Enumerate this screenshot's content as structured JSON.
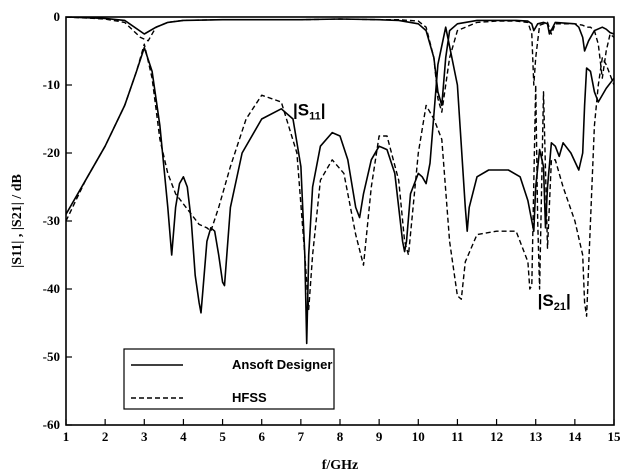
{
  "chart_data": {
    "type": "line",
    "xlabel": "f/GHz",
    "ylabel": "|S11| , |S21|  / dB",
    "xlim": [
      1,
      15
    ],
    "ylim": [
      -60,
      0
    ],
    "xticks": [
      1,
      2,
      3,
      4,
      5,
      6,
      7,
      8,
      9,
      10,
      11,
      12,
      13,
      14,
      15
    ],
    "yticks": [
      0,
      -10,
      -20,
      -30,
      -40,
      -50,
      -60
    ],
    "grid": false,
    "legend_position": "bottom-left",
    "annotations": [
      {
        "text": "|S11|",
        "main": "|S",
        "sub": "11",
        "tail": "|",
        "x": 6.8,
        "y": -14.5
      },
      {
        "text": "|S21|",
        "main": "|S",
        "sub": "21",
        "tail": "|",
        "x": 13.05,
        "y": -42.5
      }
    ],
    "series": [
      {
        "name": "Ansoft Designer",
        "style": "solid",
        "curves": [
          {
            "x": [
              1,
              1.5,
              2,
              2.5,
              2.8,
              3,
              3.2,
              3.4,
              3.6,
              3.7,
              3.8,
              3.9,
              4,
              4.1,
              4.2,
              4.3,
              4.4,
              4.45,
              4.5,
              4.6,
              4.7,
              4.8,
              4.9,
              5,
              5.05,
              5.2,
              5.5,
              6,
              6.5,
              6.8,
              7,
              7.1,
              7.15,
              7.2,
              7.3,
              7.5,
              7.8,
              8,
              8.2,
              8.4,
              8.5,
              8.6,
              8.8,
              9,
              9.2,
              9.4,
              9.6,
              9.65,
              9.7,
              9.8,
              10,
              10.1,
              10.2,
              10.3,
              10.5,
              10.7,
              11,
              11.2,
              11.25,
              11.3,
              11.5,
              11.8,
              12,
              12.3,
              12.6,
              12.8,
              12.9,
              12.95,
              13,
              13.1,
              13.2,
              13.25,
              13.3,
              13.4,
              13.5,
              13.6,
              13.7,
              13.9,
              14.1,
              14.2,
              14.25,
              14.3,
              14.4,
              14.5,
              14.6,
              14.8,
              15
            ],
            "y": [
              -29,
              -24,
              -19,
              -13,
              -8,
              -4.5,
              -8,
              -16,
              -28,
              -35,
              -28,
              -24.5,
              -23.5,
              -25,
              -30,
              -38,
              -42,
              -43.5,
              -40,
              -33,
              -31,
              -31.5,
              -35,
              -39,
              -39.5,
              -28,
              -20,
              -15,
              -13.5,
              -15,
              -22,
              -35,
              -48,
              -35,
              -25,
              -19,
              -17,
              -17.5,
              -21,
              -28,
              -29.5,
              -26,
              -21,
              -19,
              -19.5,
              -23,
              -33,
              -34.5,
              -33,
              -26,
              -23,
              -23.5,
              -24.5,
              -21.5,
              -7,
              -1.5,
              -10,
              -28,
              -31.5,
              -28,
              -23.5,
              -22.5,
              -22.5,
              -22.5,
              -23.5,
              -27,
              -30,
              -31.5,
              -25,
              -19.5,
              -22,
              -31,
              -25,
              -18.5,
              -19,
              -20.5,
              -18.5,
              -20,
              -22.5,
              -20,
              -13,
              -7.5,
              -8,
              -11,
              -12.5,
              -10.5,
              -9
            ]
          },
          {
            "x": [
              1,
              2,
              2.5,
              3,
              3.3,
              3.6,
              4,
              5,
              6,
              7,
              8,
              9,
              9.5,
              10,
              10.2,
              10.4,
              10.5,
              10.6,
              10.7,
              10.8,
              11,
              11.5,
              12,
              12.5,
              12.8,
              12.9,
              12.95,
              13.05,
              13.2,
              13.3,
              13.35,
              13.5,
              14,
              14.1,
              14.2,
              14.25,
              14.35,
              14.5,
              14.7,
              14.8,
              14.9,
              15
            ],
            "y": [
              0,
              -0.2,
              -0.5,
              -2.5,
              -1.5,
              -0.8,
              -0.5,
              -0.4,
              -0.4,
              -0.4,
              -0.3,
              -0.4,
              -0.5,
              -1,
              -2,
              -6,
              -11,
              -13,
              -6,
              -2,
              -1,
              -0.5,
              -0.5,
              -0.5,
              -0.6,
              -1,
              -2,
              -1,
              -0.8,
              -1,
              -2.5,
              -0.8,
              -1,
              -1.5,
              -3,
              -5,
              -3.5,
              -2,
              -1.5,
              -1.8,
              -2.3,
              -2.5
            ]
          }
        ]
      },
      {
        "name": "HFSS",
        "style": "dashed",
        "curves": [
          {
            "x": [
              1,
              1.5,
              2,
              2.5,
              2.8,
              3,
              3.2,
              3.4,
              3.6,
              3.8,
              4,
              4.2,
              4.4,
              4.6,
              4.7,
              4.9,
              5.2,
              5.6,
              6,
              6.5,
              6.9,
              7.1,
              7.2,
              7.3,
              7.5,
              7.8,
              8.1,
              8.4,
              8.6,
              8.8,
              9,
              9.2,
              9.5,
              9.65,
              9.75,
              10,
              10.2,
              10.4,
              10.6,
              10.8,
              11,
              11.1,
              11.2,
              11.5,
              12,
              12.5,
              12.8,
              12.85,
              12.9,
              13,
              13.05,
              13.1,
              13.2,
              13.3,
              13.4,
              13.5,
              13.7,
              14,
              14.2,
              14.25,
              14.3,
              14.4,
              14.5,
              14.6,
              14.7,
              14.8,
              15
            ],
            "y": [
              -30,
              -24,
              -19,
              -13,
              -8,
              -4,
              -9,
              -18,
              -23,
              -26,
              -27.5,
              -29,
              -30.5,
              -31,
              -31.5,
              -28,
              -22,
              -15,
              -11.5,
              -12.5,
              -20,
              -35,
              -43,
              -35,
              -24,
              -21,
              -23,
              -32,
              -36.5,
              -25,
              -17.5,
              -17.5,
              -24,
              -33,
              -35,
              -20,
              -13,
              -15,
              -18,
              -33,
              -41,
              -41.5,
              -36,
              -32,
              -31.5,
              -31.5,
              -36,
              -40,
              -39.5,
              -10,
              -30,
              -40,
              -11,
              -34,
              -21,
              -21,
              -25,
              -30,
              -35,
              -42,
              -44,
              -30,
              -16,
              -10,
              -6,
              -7,
              -10
            ]
          },
          {
            "x": [
              1,
              2,
              2.5,
              2.9,
              3.1,
              3.3,
              3.6,
              4,
              5,
              6,
              7,
              8,
              9,
              9.5,
              10,
              10.2,
              10.4,
              10.5,
              10.6,
              10.8,
              11,
              11.5,
              12,
              12.5,
              12.8,
              12.9,
              12.95,
              13,
              13.1,
              13.3,
              13.4,
              13.5,
              14,
              14.2,
              14.3,
              14.4,
              14.5,
              14.6,
              14.7,
              14.8,
              14.9,
              15
            ],
            "y": [
              0,
              -0.3,
              -0.8,
              -3,
              -3.5,
              -1.5,
              -0.8,
              -0.5,
              -0.4,
              -0.4,
              -0.4,
              -0.3,
              -0.4,
              -0.4,
              -0.6,
              -1.5,
              -6,
              -12,
              -14,
              -6,
              -2,
              -0.8,
              -0.6,
              -0.6,
              -0.8,
              -2.5,
              -10,
              -6,
              -1.2,
              -0.8,
              -2.5,
              -1,
              -1,
              -1.2,
              -1.5,
              -1.5,
              -2,
              -4,
              -9,
              -5,
              -2.5,
              -3
            ]
          }
        ]
      }
    ]
  }
}
